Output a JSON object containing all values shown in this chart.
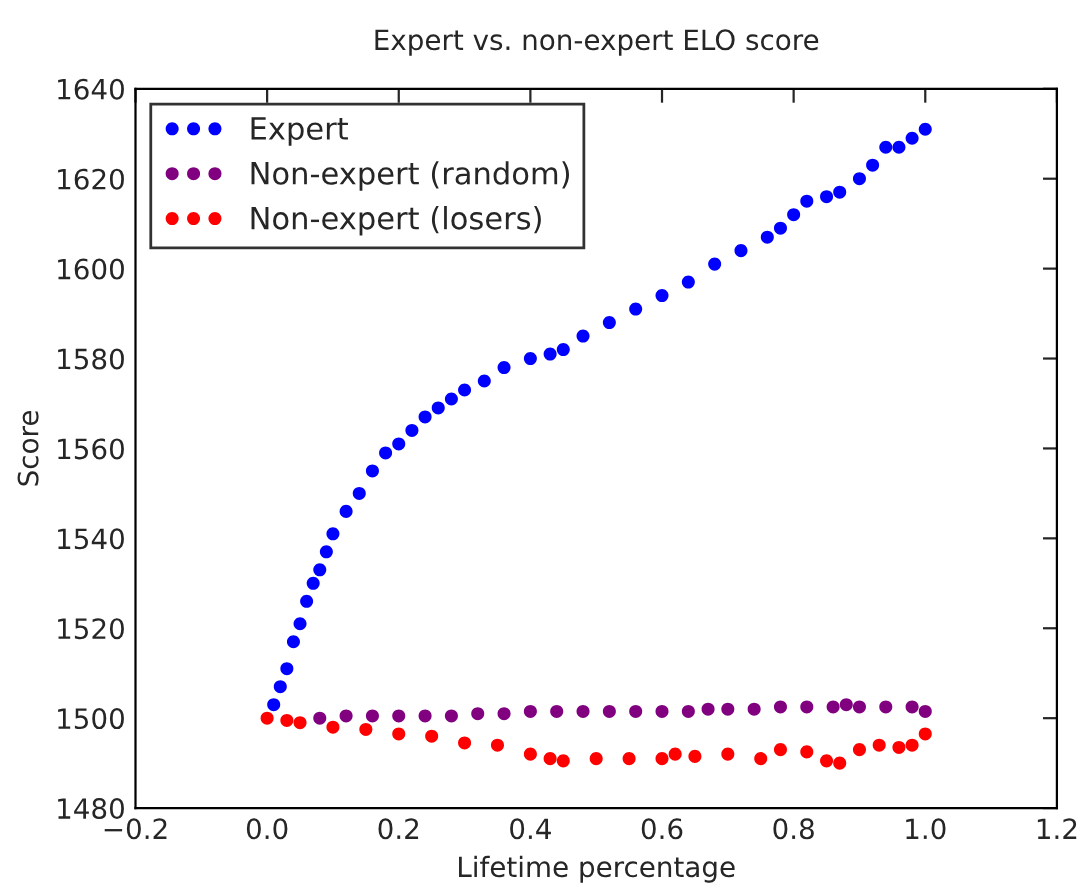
{
  "chart_data": {
    "type": "scatter",
    "title": "Expert vs. non-expert ELO score",
    "xlabel": "Lifetime percentage",
    "ylabel": "Score",
    "xlim": [
      -0.2,
      1.2
    ],
    "xticks": [
      {
        "value": -0.2,
        "label": "−0.2"
      },
      {
        "value": 0,
        "label": "0.0"
      },
      0.2,
      0.4,
      0.6,
      0.8,
      {
        "value": 1,
        "label": "1.0"
      },
      1.2
    ],
    "ylim": [
      1480,
      1640
    ],
    "yticks": [
      1480,
      1500,
      1520,
      1540,
      1560,
      1580,
      1600,
      1620,
      1640
    ],
    "grid": false,
    "legend": "top left",
    "marker": "circle",
    "series": [
      {
        "name": "Expert",
        "color": "#0000ff",
        "x": [
          0.01,
          0.02,
          0.03,
          0.04,
          0.05,
          0.06,
          0.07,
          0.08,
          0.09,
          0.1,
          0.12,
          0.14,
          0.16,
          0.18,
          0.2,
          0.22,
          0.24,
          0.26,
          0.28,
          0.3,
          0.33,
          0.36,
          0.4,
          0.43,
          0.45,
          0.48,
          0.52,
          0.56,
          0.6,
          0.64,
          0.68,
          0.72,
          0.76,
          0.78,
          0.8,
          0.82,
          0.85,
          0.87,
          0.9,
          0.92,
          0.94,
          0.96,
          0.98,
          1.0
        ],
        "values": [
          1503,
          1507,
          1511,
          1517,
          1521,
          1526,
          1530,
          1533,
          1537,
          1541,
          1546,
          1550,
          1555,
          1559,
          1561,
          1564,
          1567,
          1569,
          1571,
          1573,
          1575,
          1578,
          1580,
          1581,
          1582,
          1585,
          1588,
          1591,
          1594,
          1597,
          1601,
          1604,
          1607,
          1609,
          1612,
          1615,
          1616,
          1617,
          1620,
          1623,
          1627,
          1627,
          1629,
          1631
        ]
      },
      {
        "name": "Non-expert (random)",
        "color": "#800080",
        "x": [
          0.08,
          0.12,
          0.16,
          0.2,
          0.24,
          0.28,
          0.32,
          0.36,
          0.4,
          0.44,
          0.48,
          0.52,
          0.56,
          0.6,
          0.64,
          0.67,
          0.7,
          0.74,
          0.78,
          0.82,
          0.86,
          0.88,
          0.9,
          0.94,
          0.98,
          1.0
        ],
        "values": [
          1500,
          1500.5,
          1500.5,
          1500.5,
          1500.5,
          1500.5,
          1501,
          1501,
          1501.5,
          1501.5,
          1501.5,
          1501.5,
          1501.5,
          1501.5,
          1501.5,
          1502,
          1502,
          1502,
          1502.5,
          1502.5,
          1502.5,
          1503,
          1502.5,
          1502.5,
          1502.5,
          1501.5
        ]
      },
      {
        "name": "Non-expert (losers)",
        "color": "#ff0000",
        "x": [
          0,
          0.03,
          0.05,
          0.1,
          0.15,
          0.2,
          0.25,
          0.3,
          0.35,
          0.4,
          0.43,
          0.45,
          0.5,
          0.55,
          0.6,
          0.62,
          0.65,
          0.7,
          0.75,
          0.78,
          0.82,
          0.85,
          0.87,
          0.9,
          0.93,
          0.96,
          0.98,
          1.0
        ],
        "values": [
          1500,
          1499.5,
          1499,
          1498,
          1497.5,
          1496.5,
          1496,
          1494.5,
          1494,
          1492,
          1491,
          1490.5,
          1491,
          1491,
          1491,
          1492,
          1491.5,
          1492,
          1491,
          1493,
          1492.5,
          1490.5,
          1490,
          1493,
          1494,
          1493.5,
          1494,
          1496.5
        ]
      }
    ]
  }
}
